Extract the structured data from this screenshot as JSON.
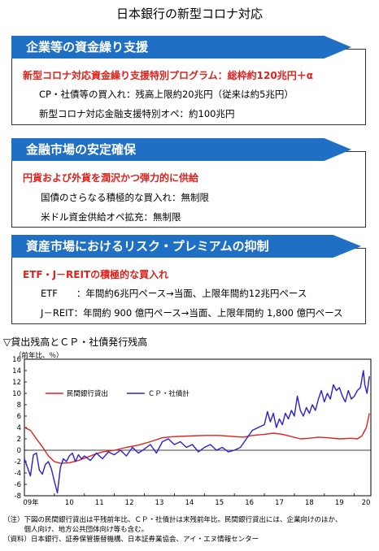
{
  "title": "日本銀行の新型コロナ対応",
  "panels": [
    {
      "header": "企業等の資金繰り支援",
      "highlight": "新型コロナ対応資金繰り支援特別プログラム：総枠約120兆円＋α",
      "lines": [
        "CP・社債等の買入れ：残高上限約20兆円（従来は約5兆円）",
        "新型コロナ対応金融支援特別オペ：約100兆円"
      ]
    },
    {
      "header": "金融市場の安定確保",
      "highlight": "円貨および外貨を潤沢かつ弾力的に供給",
      "lines": [
        "国債のさらなる積極的な買入れ：無制限",
        "米ドル資金供給オペ拡充：無制限"
      ]
    },
    {
      "header": "資産市場におけるリスク・プレミアムの抑制",
      "highlight": "ETF・J－REITの積極的な買入れ",
      "lines": [
        "ETF　　：年間約6兆円ペース→当面、上限年間約12兆円ペース",
        "J－REIT：年間約 900 億円ペース→当面、上限年間約 1,800 億円ペース"
      ]
    }
  ],
  "chart_title": "▽貸出残高とＣＰ・社債発行残高",
  "chart_unit": "（前年比、％）",
  "notes": [
    "（注）下図の民間銀行貸出は平残前年比、ＣＰ・社債計は末残前年比。民間銀行貸出には、企業向けのほか、",
    "　　　個人向け、地方公共団体向け等も含む。",
    "（資料）日本銀行、証券保管振替機構、日本証券業協会、アイ・エヌ情報センター"
  ],
  "colors": {
    "header_blue": "#1f6fc4",
    "highlight_red": "#e0211b",
    "series_red": "#e0211b",
    "series_blue": "#2b1fd6"
  },
  "chart_data": {
    "type": "line",
    "x_tick_labels": [
      "09年",
      "10",
      "11",
      "12",
      "13",
      "14",
      "15",
      "16",
      "17",
      "18",
      "19",
      "20"
    ],
    "y_ticks": [
      -8,
      -6,
      -4,
      -2,
      0,
      2,
      4,
      6,
      8,
      10,
      12,
      14,
      16
    ],
    "ylim": [
      -8,
      16
    ],
    "xlim": [
      2009.0,
      2020.55
    ],
    "grid": false,
    "legend_position": "top-left",
    "series": [
      {
        "name": "民間銀行貸出",
        "color": "#e0211b",
        "points": [
          [
            2009.0,
            4.0
          ],
          [
            2009.2,
            3.5
          ],
          [
            2009.4,
            2.0
          ],
          [
            2009.6,
            0.6
          ],
          [
            2009.8,
            -1.0
          ],
          [
            2010.0,
            -2.0
          ],
          [
            2010.2,
            -2.3
          ],
          [
            2010.5,
            -2.2
          ],
          [
            2010.8,
            -1.8
          ],
          [
            2011.0,
            -1.4
          ],
          [
            2011.3,
            -0.8
          ],
          [
            2011.6,
            -0.3
          ],
          [
            2012.0,
            0.0
          ],
          [
            2012.4,
            0.5
          ],
          [
            2012.8,
            0.9
          ],
          [
            2013.2,
            1.5
          ],
          [
            2013.6,
            2.2
          ],
          [
            2014.0,
            2.4
          ],
          [
            2014.5,
            2.5
          ],
          [
            2015.0,
            2.6
          ],
          [
            2015.5,
            2.6
          ],
          [
            2016.0,
            2.4
          ],
          [
            2016.3,
            2.3
          ],
          [
            2016.6,
            2.6
          ],
          [
            2017.0,
            2.8
          ],
          [
            2017.3,
            3.0
          ],
          [
            2017.6,
            2.8
          ],
          [
            2017.9,
            2.4
          ],
          [
            2018.2,
            2.0
          ],
          [
            2018.5,
            2.1
          ],
          [
            2018.8,
            2.3
          ],
          [
            2019.1,
            2.2
          ],
          [
            2019.5,
            2.0
          ],
          [
            2019.9,
            2.1
          ],
          [
            2020.1,
            2.0
          ],
          [
            2020.25,
            2.5
          ],
          [
            2020.4,
            4.0
          ],
          [
            2020.5,
            6.5
          ]
        ]
      },
      {
        "name": "ＣＰ・社債計",
        "color": "#2b1fd6",
        "points": [
          [
            2009.0,
            -1.5
          ],
          [
            2009.1,
            -3.0
          ],
          [
            2009.2,
            -4.5
          ],
          [
            2009.3,
            -0.8
          ],
          [
            2009.4,
            -0.5
          ],
          [
            2009.5,
            -3.5
          ],
          [
            2009.6,
            -4.2
          ],
          [
            2009.7,
            -2.5
          ],
          [
            2009.8,
            -2.0
          ],
          [
            2009.9,
            -3.3
          ],
          [
            2010.0,
            -5.5
          ],
          [
            2010.1,
            -7.5
          ],
          [
            2010.2,
            -3.0
          ],
          [
            2010.3,
            -1.5
          ],
          [
            2010.4,
            -2.0
          ],
          [
            2010.5,
            -1.0
          ],
          [
            2010.6,
            -0.5
          ],
          [
            2010.7,
            -2.0
          ],
          [
            2010.8,
            -0.8
          ],
          [
            2010.9,
            -1.5
          ],
          [
            2011.0,
            -1.0
          ],
          [
            2011.2,
            -1.8
          ],
          [
            2011.4,
            -0.5
          ],
          [
            2011.6,
            -1.5
          ],
          [
            2011.8,
            -0.3
          ],
          [
            2012.0,
            -0.8
          ],
          [
            2012.2,
            0.0
          ],
          [
            2012.4,
            -1.0
          ],
          [
            2012.6,
            0.5
          ],
          [
            2012.8,
            -0.5
          ],
          [
            2013.0,
            0.2
          ],
          [
            2013.2,
            1.0
          ],
          [
            2013.4,
            -0.5
          ],
          [
            2013.6,
            1.5
          ],
          [
            2013.8,
            2.0
          ],
          [
            2014.0,
            1.0
          ],
          [
            2014.2,
            1.5
          ],
          [
            2014.4,
            0.5
          ],
          [
            2014.6,
            1.0
          ],
          [
            2014.8,
            -0.3
          ],
          [
            2015.0,
            0.5
          ],
          [
            2015.2,
            1.0
          ],
          [
            2015.4,
            0.0
          ],
          [
            2015.6,
            0.5
          ],
          [
            2015.8,
            -0.3
          ],
          [
            2016.0,
            0.0
          ],
          [
            2016.2,
            0.5
          ],
          [
            2016.4,
            2.0
          ],
          [
            2016.6,
            3.5
          ],
          [
            2016.8,
            4.0
          ],
          [
            2017.0,
            4.5
          ],
          [
            2017.1,
            6.8
          ],
          [
            2017.2,
            5.0
          ],
          [
            2017.3,
            6.5
          ],
          [
            2017.4,
            4.0
          ],
          [
            2017.5,
            5.5
          ],
          [
            2017.6,
            4.5
          ],
          [
            2017.7,
            6.5
          ],
          [
            2017.8,
            5.5
          ],
          [
            2017.9,
            7.0
          ],
          [
            2018.0,
            6.0
          ],
          [
            2018.1,
            9.5
          ],
          [
            2018.2,
            7.0
          ],
          [
            2018.3,
            6.0
          ],
          [
            2018.4,
            7.5
          ],
          [
            2018.5,
            6.5
          ],
          [
            2018.6,
            8.0
          ],
          [
            2018.7,
            7.0
          ],
          [
            2018.8,
            9.0
          ],
          [
            2018.9,
            10.5
          ],
          [
            2019.0,
            8.5
          ],
          [
            2019.1,
            10.0
          ],
          [
            2019.2,
            9.0
          ],
          [
            2019.3,
            11.5
          ],
          [
            2019.4,
            10.5
          ],
          [
            2019.5,
            11.0
          ],
          [
            2019.6,
            9.5
          ],
          [
            2019.7,
            8.5
          ],
          [
            2019.8,
            10.5
          ],
          [
            2019.9,
            9.0
          ],
          [
            2020.0,
            9.5
          ],
          [
            2020.1,
            10.5
          ],
          [
            2020.2,
            11.0
          ],
          [
            2020.3,
            14.0
          ],
          [
            2020.35,
            11.5
          ],
          [
            2020.42,
            10.0
          ],
          [
            2020.5,
            13.0
          ]
        ]
      }
    ]
  }
}
